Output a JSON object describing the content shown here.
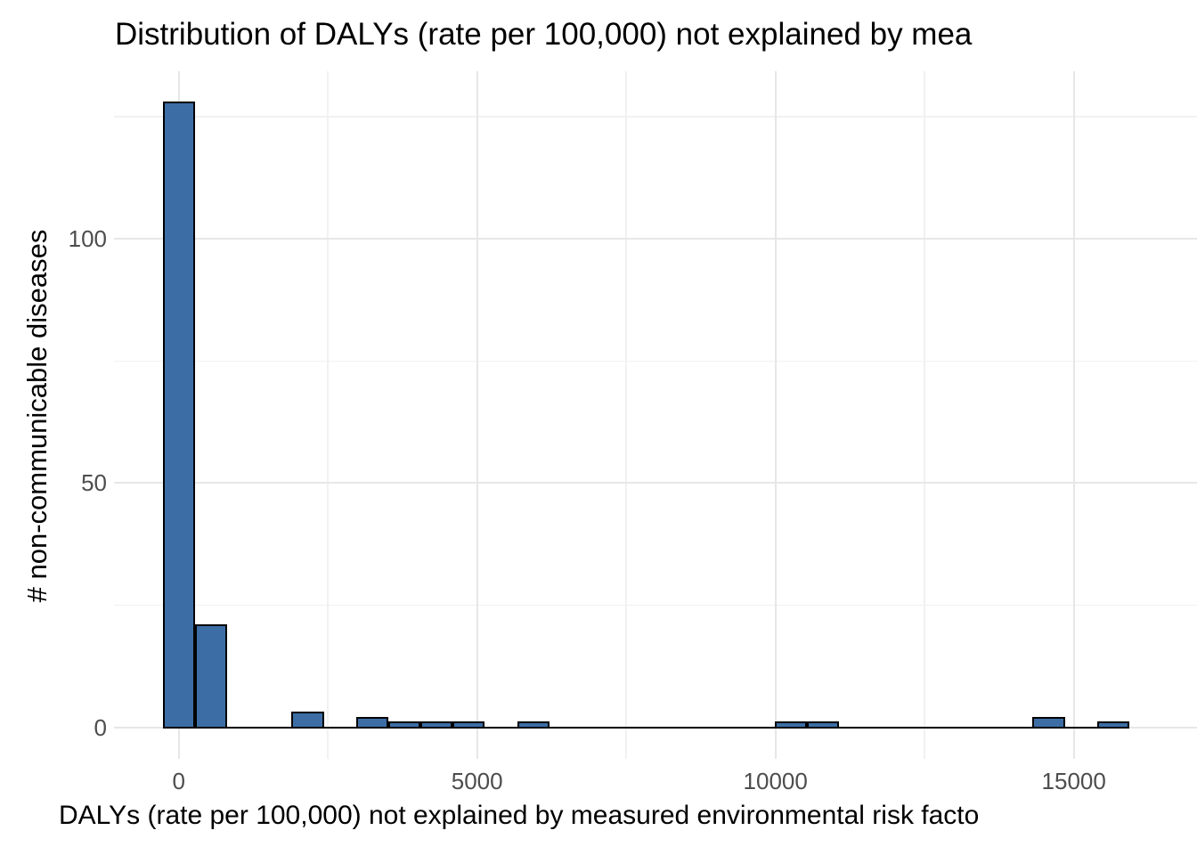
{
  "figure": {
    "background": "#FFFFFF"
  },
  "chart_data": {
    "type": "bar",
    "subtype": "histogram",
    "title": "Distribution of DALYs (rate per 100,000) not explained by mea",
    "title_truncated_at_right_edge": true,
    "xlabel": "DALYs (rate per 100,000) not explained by measured environmental risk facto",
    "xlabel_truncated_at_right_edge": true,
    "ylabel": "# non-communicable diseases",
    "bin_width": 540,
    "bins": [
      {
        "center": 0,
        "count": 128
      },
      {
        "center": 540,
        "count": 21
      },
      {
        "center": 2160,
        "count": 3
      },
      {
        "center": 3240,
        "count": 2
      },
      {
        "center": 3780,
        "count": 1
      },
      {
        "center": 4320,
        "count": 1
      },
      {
        "center": 4860,
        "count": 1
      },
      {
        "center": 5940,
        "count": 1
      },
      {
        "center": 10260,
        "count": 1
      },
      {
        "center": 10800,
        "count": 1
      },
      {
        "center": 14580,
        "count": 2
      },
      {
        "center": 15660,
        "count": 1
      }
    ],
    "all_bin_counts": [
      128,
      21,
      0,
      0,
      3,
      0,
      2,
      1,
      1,
      1,
      0,
      1,
      0,
      0,
      0,
      0,
      0,
      0,
      0,
      1,
      1,
      0,
      0,
      0,
      0,
      0,
      0,
      2,
      0,
      1
    ],
    "zero_line_extent": [
      -270,
      15930
    ],
    "x_ticks": [
      {
        "value": 0,
        "label": "0"
      },
      {
        "value": 5000,
        "label": "5000"
      },
      {
        "value": 10000,
        "label": "10000"
      },
      {
        "value": 15000,
        "label": "15000"
      }
    ],
    "x_minor_ticks": [
      2500,
      7500,
      12500
    ],
    "y_ticks": [
      {
        "value": 0,
        "label": "0"
      },
      {
        "value": 50,
        "label": "50"
      },
      {
        "value": 100,
        "label": "100"
      }
    ],
    "y_minor_ticks": [
      25,
      75,
      125
    ],
    "xlim": [
      -1080,
      17050
    ],
    "ylim": [
      -6,
      134
    ],
    "grid": "major and minor, light gray on white (theme_minimal style)",
    "legend": "none",
    "colors": {
      "bar_fill": "#3C6EA5",
      "bar_stroke": "#000000",
      "baseline": "#000000",
      "grid_major": "#E7E7E7",
      "grid_minor": "#F1F1F1",
      "tick_label": "#4D4D4D",
      "title_text": "#000000"
    }
  }
}
